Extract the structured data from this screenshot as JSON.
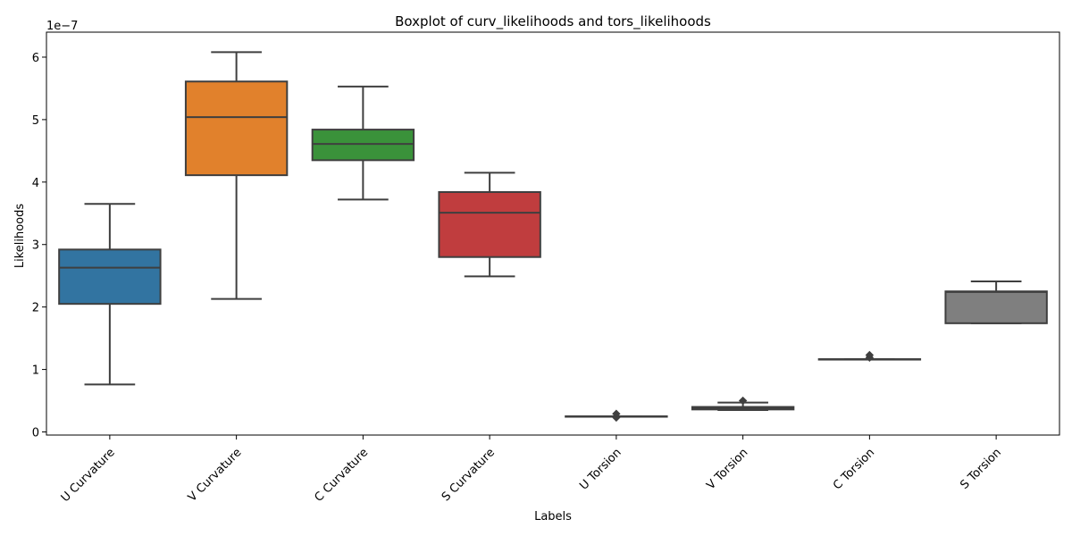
{
  "chart_data": {
    "type": "boxplot",
    "title": "Boxplot of curv_likelihoods and tors_likelihoods",
    "xlabel": "Labels",
    "ylabel": "Likelihoods",
    "y_offset_label": "1e−7",
    "y_scale": 1e-07,
    "ylim": [
      -0.05,
      6.4
    ],
    "yticks": [
      0,
      1,
      2,
      3,
      4,
      5,
      6
    ],
    "yticklabels": [
      "0",
      "1",
      "2",
      "3",
      "4",
      "5",
      "6"
    ],
    "grid": false,
    "categories": [
      "U Curvature",
      "V Curvature",
      "C Curvature",
      "S Curvature",
      "U Torsion",
      "V Torsion",
      "C Torsion",
      "S Torsion"
    ],
    "boxes": [
      {
        "label": "U Curvature",
        "color": "#3274a1",
        "whisker_low": 0.76,
        "q1": 2.05,
        "median": 2.63,
        "q3": 2.92,
        "whisker_high": 3.65,
        "outliers": []
      },
      {
        "label": "V Curvature",
        "color": "#e1812c",
        "whisker_low": 2.13,
        "q1": 4.11,
        "median": 5.04,
        "q3": 5.61,
        "whisker_high": 6.08,
        "outliers": []
      },
      {
        "label": "C Curvature",
        "color": "#3a923a",
        "whisker_low": 3.72,
        "q1": 4.35,
        "median": 4.61,
        "q3": 4.84,
        "whisker_high": 5.53,
        "outliers": []
      },
      {
        "label": "S Curvature",
        "color": "#c03d3e",
        "whisker_low": 2.49,
        "q1": 2.8,
        "median": 3.51,
        "q3": 3.84,
        "whisker_high": 4.15,
        "outliers": []
      },
      {
        "label": "U Torsion",
        "color": "#9372b2",
        "whisker_low": 2.48,
        "q1": 2.48,
        "median": 2.48,
        "q3": 2.48,
        "whisker_high": 2.48,
        "scale_override": 0.1,
        "outliers": [
          0.23,
          0.29
        ]
      },
      {
        "label": "V Torsion",
        "color": "#845b53",
        "whisker_low": 0.35,
        "q1": 0.36,
        "median": 0.38,
        "q3": 0.4,
        "whisker_high": 0.47,
        "outliers": [
          0.5
        ]
      },
      {
        "label": "C Torsion",
        "color": "#d684bd",
        "whisker_low": 1.16,
        "q1": 1.16,
        "median": 1.16,
        "q3": 1.165,
        "whisker_high": 1.165,
        "outliers": [
          1.19,
          1.23
        ]
      },
      {
        "label": "S Torsion",
        "color": "#7f7f7f",
        "whisker_low": 1.74,
        "q1": 1.74,
        "median": 2.24,
        "q3": 2.25,
        "whisker_high": 2.41,
        "outliers": []
      }
    ]
  }
}
